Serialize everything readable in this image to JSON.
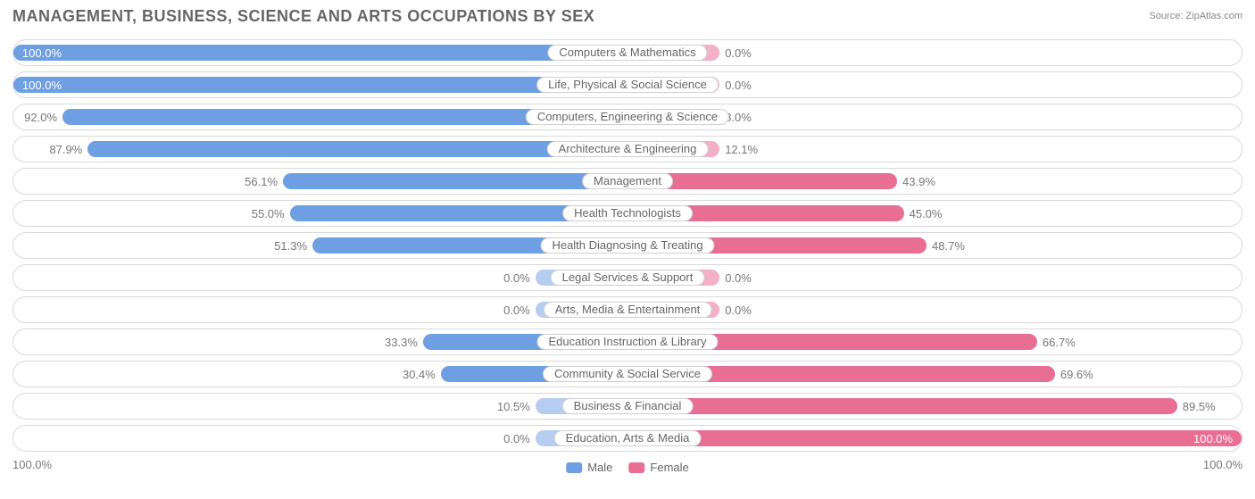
{
  "title": "MANAGEMENT, BUSINESS, SCIENCE AND ARTS OCCUPATIONS BY SEX",
  "source": "Source: ZipAtlas.com",
  "axis": {
    "left": "100.0%",
    "right": "100.0%"
  },
  "legend": {
    "male": {
      "label": "Male",
      "color": "#6f9fe3"
    },
    "female": {
      "label": "Female",
      "color": "#e86e94"
    }
  },
  "colors": {
    "male_bar": "#6f9fe3",
    "female_bar": "#e86e94",
    "male_min": "#b5cdf0",
    "female_min": "#f3b0c6",
    "row_border": "#d9d9d9",
    "pill_border": "#d0d0d0",
    "text_title": "#666666",
    "text_value": "#777777",
    "background": "#ffffff"
  },
  "min_bar_pct": 15,
  "rows": [
    {
      "category": "Computers & Mathematics",
      "male": 100.0,
      "female": 0.0,
      "male_label": "100.0%",
      "female_label": "0.0%"
    },
    {
      "category": "Life, Physical & Social Science",
      "male": 100.0,
      "female": 0.0,
      "male_label": "100.0%",
      "female_label": "0.0%"
    },
    {
      "category": "Computers, Engineering & Science",
      "male": 92.0,
      "female": 8.0,
      "male_label": "92.0%",
      "female_label": "8.0%"
    },
    {
      "category": "Architecture & Engineering",
      "male": 87.9,
      "female": 12.1,
      "male_label": "87.9%",
      "female_label": "12.1%"
    },
    {
      "category": "Management",
      "male": 56.1,
      "female": 43.9,
      "male_label": "56.1%",
      "female_label": "43.9%"
    },
    {
      "category": "Health Technologists",
      "male": 55.0,
      "female": 45.0,
      "male_label": "55.0%",
      "female_label": "45.0%"
    },
    {
      "category": "Health Diagnosing & Treating",
      "male": 51.3,
      "female": 48.7,
      "male_label": "51.3%",
      "female_label": "48.7%"
    },
    {
      "category": "Legal Services & Support",
      "male": 0.0,
      "female": 0.0,
      "male_label": "0.0%",
      "female_label": "0.0%"
    },
    {
      "category": "Arts, Media & Entertainment",
      "male": 0.0,
      "female": 0.0,
      "male_label": "0.0%",
      "female_label": "0.0%"
    },
    {
      "category": "Education Instruction & Library",
      "male": 33.3,
      "female": 66.7,
      "male_label": "33.3%",
      "female_label": "66.7%"
    },
    {
      "category": "Community & Social Service",
      "male": 30.4,
      "female": 69.6,
      "male_label": "30.4%",
      "female_label": "69.6%"
    },
    {
      "category": "Business & Financial",
      "male": 10.5,
      "female": 89.5,
      "male_label": "10.5%",
      "female_label": "89.5%"
    },
    {
      "category": "Education, Arts & Media",
      "male": 0.0,
      "female": 100.0,
      "male_label": "0.0%",
      "female_label": "100.0%"
    }
  ]
}
